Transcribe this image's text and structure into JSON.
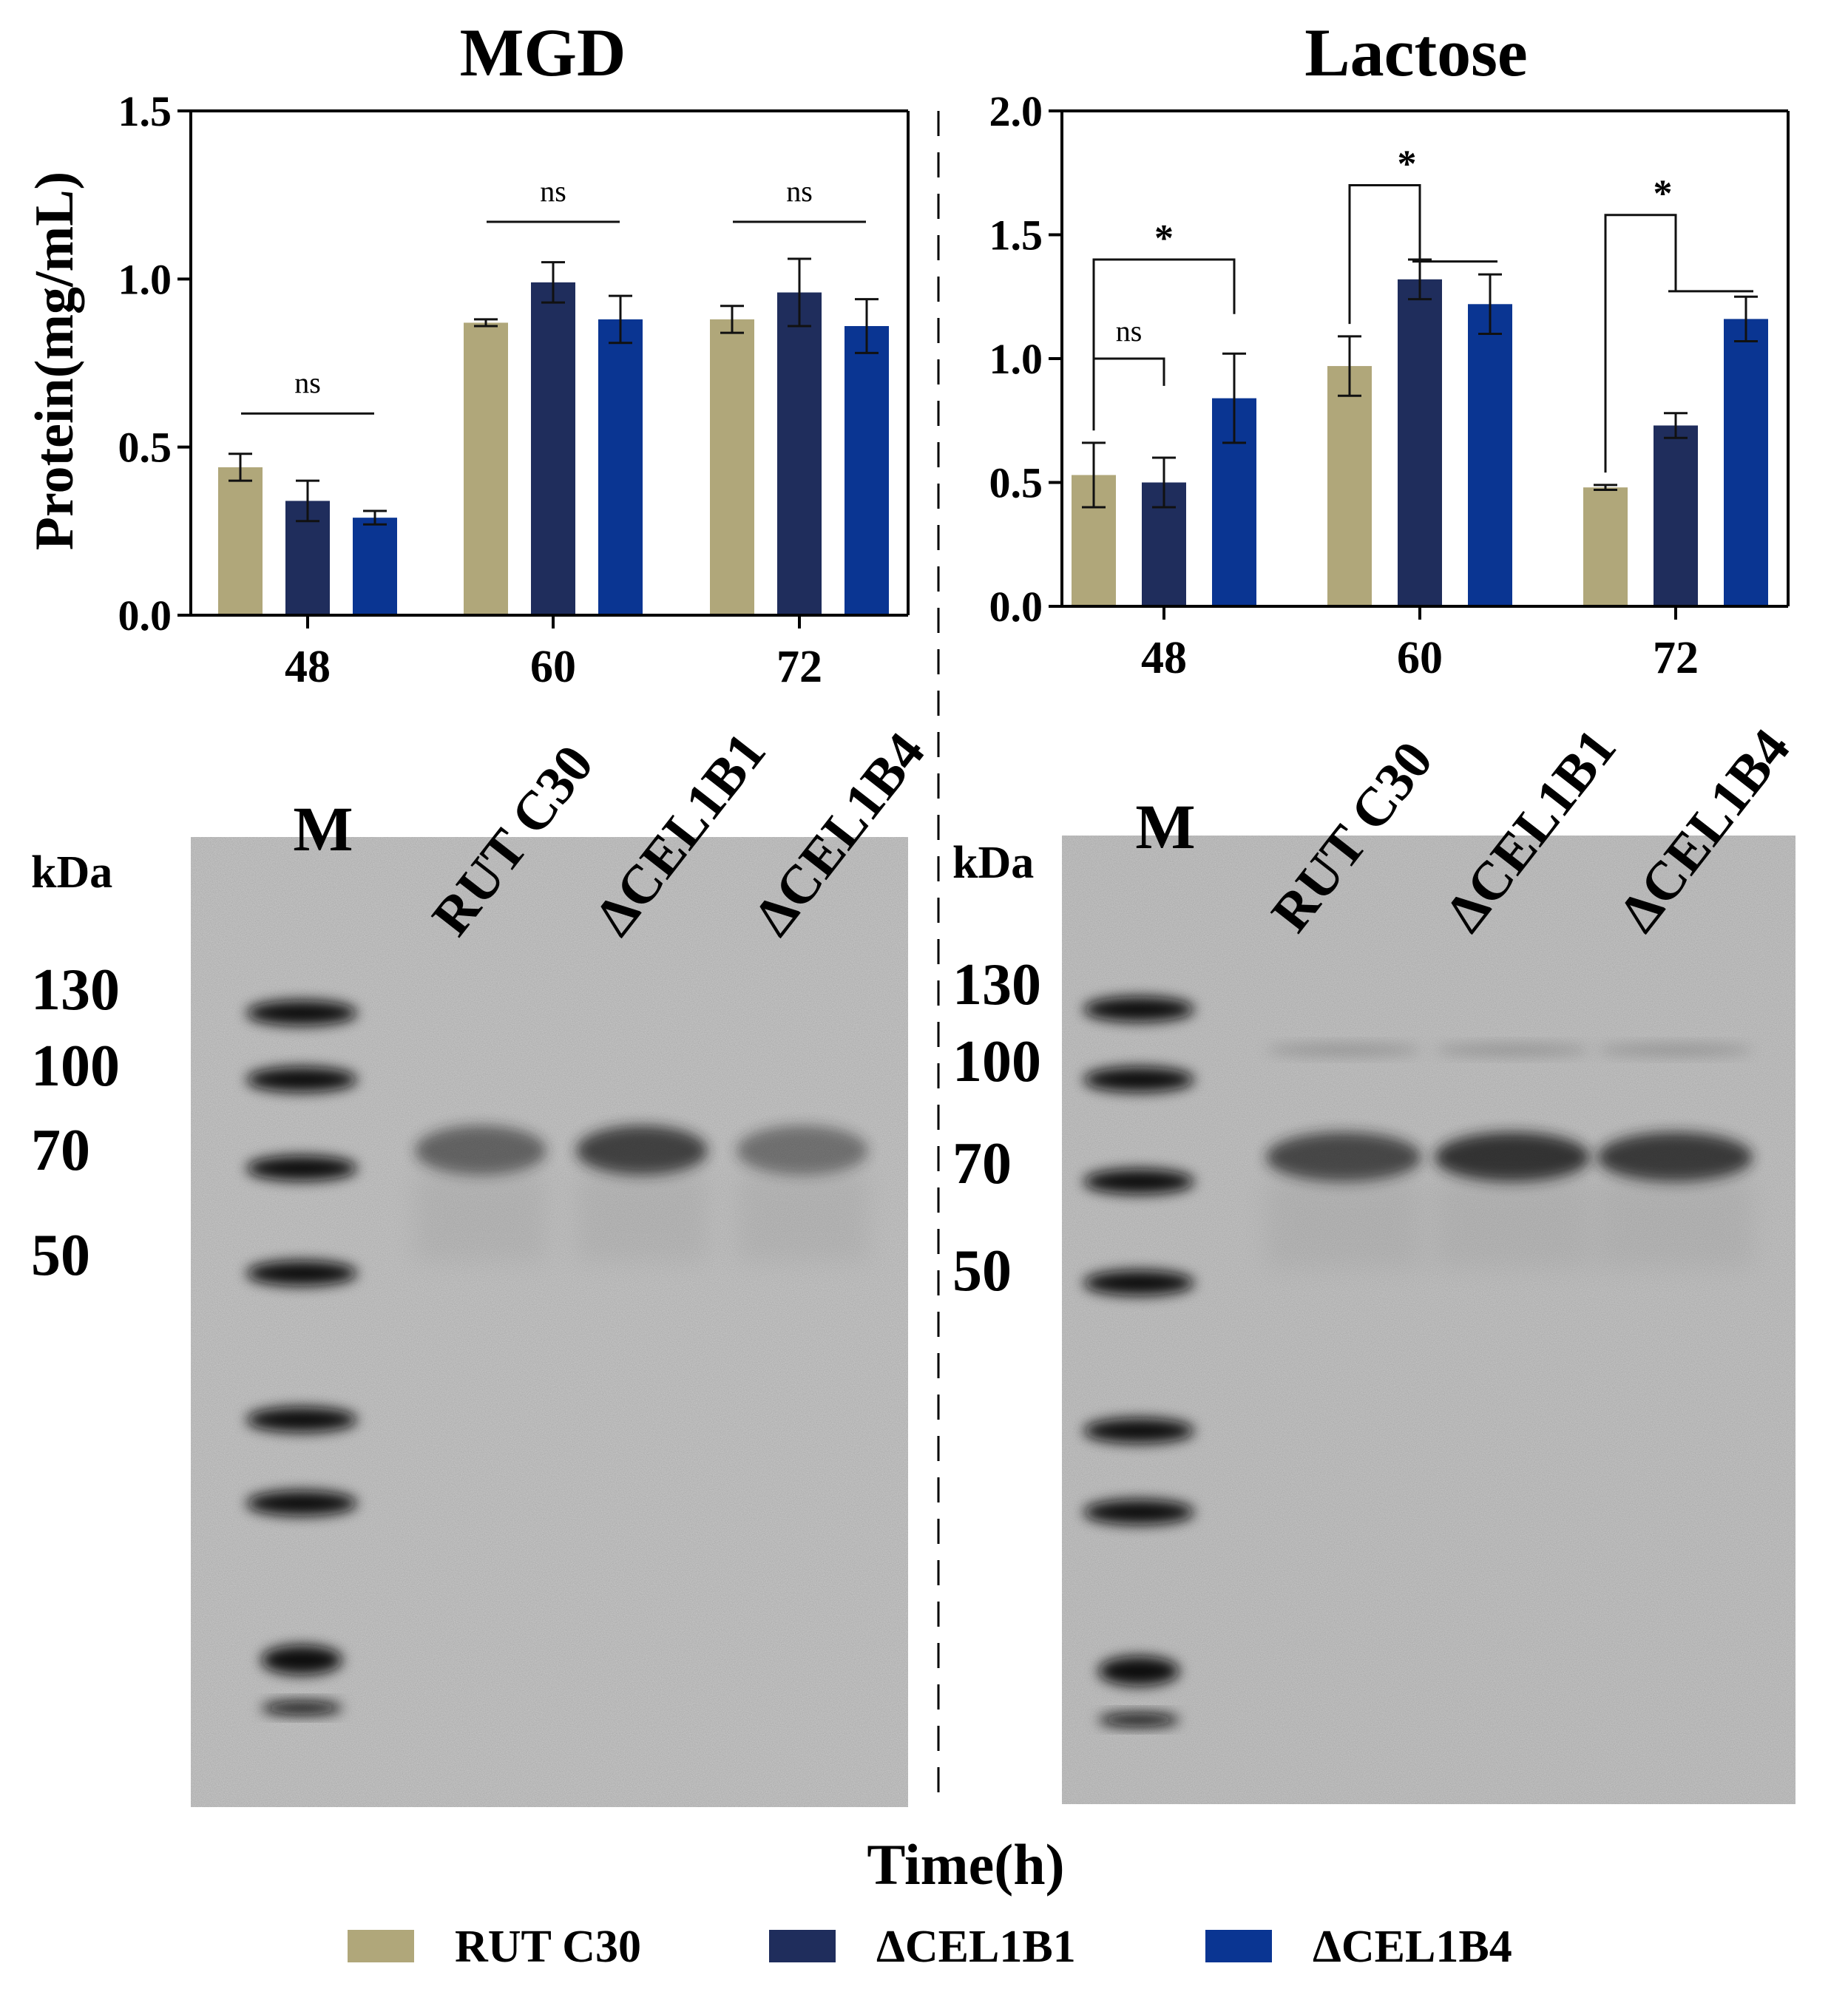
{
  "chart_data": [
    {
      "type": "bar",
      "title": "MGD",
      "ylabel": "Protein(mg/mL)",
      "xlabel": "Time(h)",
      "ylim": [
        0,
        1.5
      ],
      "yticks": [
        "0.0",
        "0.5",
        "1.0",
        "1.5"
      ],
      "categories": [
        "48",
        "60",
        "72"
      ],
      "series": [
        {
          "name": "RUT C30",
          "color": "#b0a77a",
          "values": [
            0.44,
            0.87,
            0.88
          ],
          "errors": [
            0.04,
            0.01,
            0.04
          ]
        },
        {
          "name": "ΔCEL1B1",
          "color": "#1f2d5c",
          "values": [
            0.34,
            0.99,
            0.96
          ],
          "errors": [
            0.06,
            0.06,
            0.1
          ]
        },
        {
          "name": "ΔCEL1B4",
          "color": "#0a3592",
          "values": [
            0.29,
            0.88,
            0.86
          ],
          "errors": [
            0.02,
            0.07,
            0.08
          ]
        }
      ],
      "annotations": [
        {
          "category": "48",
          "label": "ns"
        },
        {
          "category": "60",
          "label": "ns"
        },
        {
          "category": "72",
          "label": "ns"
        }
      ]
    },
    {
      "type": "bar",
      "title": "Lactose",
      "xlabel": "Time(h)",
      "ylim": [
        0,
        2.0
      ],
      "yticks": [
        "0.0",
        "0.5",
        "1.0",
        "1.5",
        "2.0"
      ],
      "categories": [
        "48",
        "60",
        "72"
      ],
      "series": [
        {
          "name": "RUT C30",
          "color": "#b0a77a",
          "values": [
            0.53,
            0.97,
            0.48
          ],
          "errors": [
            0.13,
            0.12,
            0.01
          ]
        },
        {
          "name": "ΔCEL1B1",
          "color": "#1f2d5c",
          "values": [
            0.5,
            1.32,
            0.73
          ],
          "errors": [
            0.1,
            0.08,
            0.05
          ]
        },
        {
          "name": "ΔCEL1B4",
          "color": "#0a3592",
          "values": [
            0.84,
            1.22,
            1.16
          ],
          "errors": [
            0.18,
            0.12,
            0.09
          ]
        }
      ],
      "annotations": [
        {
          "category": "48",
          "label": "ns"
        },
        {
          "category": "48",
          "label": "*"
        },
        {
          "category": "60",
          "label": "*"
        },
        {
          "category": "72",
          "label": "*"
        }
      ]
    }
  ],
  "gels": [
    {
      "marker_label": "M",
      "unit_label": "kDa",
      "mw_labels": [
        "130",
        "100",
        "70",
        "50"
      ],
      "lane_labels": [
        "RUT C30",
        "ΔCEL1B1",
        "ΔCEL1B4"
      ]
    },
    {
      "marker_label": "M",
      "unit_label": "kDa",
      "mw_labels": [
        "130",
        "100",
        "70",
        "50"
      ],
      "lane_labels": [
        "RUT C30",
        "ΔCEL1B1",
        "ΔCEL1B4"
      ]
    }
  ],
  "shared_xlabel": "Time(h)",
  "legend": [
    {
      "label": "RUT C30",
      "color": "#b0a77a"
    },
    {
      "label": "ΔCEL1B1",
      "color": "#1f2d5c"
    },
    {
      "label": "ΔCEL1B4",
      "color": "#0a3592"
    }
  ]
}
